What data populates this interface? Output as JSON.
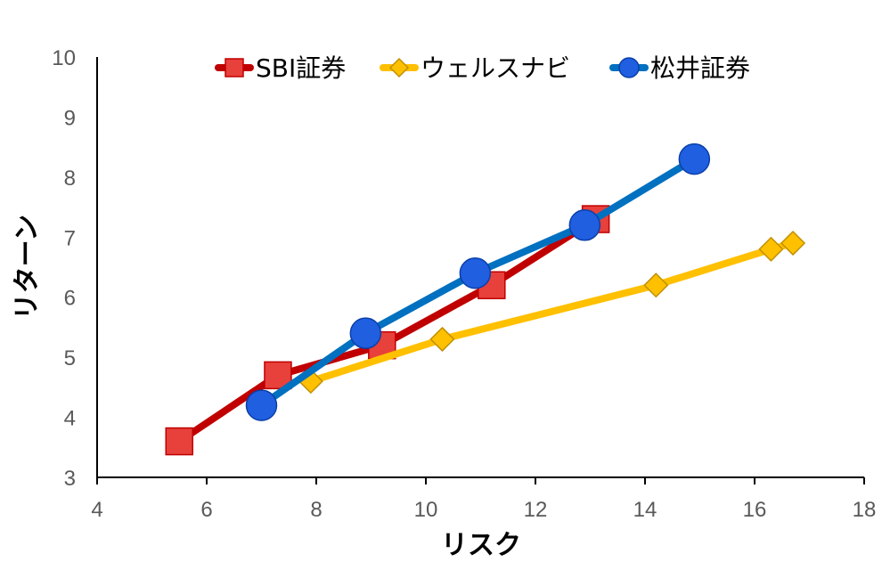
{
  "chart_data": {
    "type": "scatter",
    "title": "",
    "xlabel": "リスク",
    "ylabel": "リターン",
    "xlim": [
      4,
      18
    ],
    "ylim": [
      3,
      10
    ],
    "x_ticks": [
      "4",
      "6",
      "8",
      "10",
      "12",
      "14",
      "16",
      "18"
    ],
    "y_ticks": [
      "3",
      "4",
      "5",
      "6",
      "7",
      "8",
      "9",
      "10"
    ],
    "grid": false,
    "legend_position": "top",
    "series": [
      {
        "name": "SBI証券",
        "color": "#C00000",
        "marker_color": "#E8403A",
        "marker": "square",
        "points": [
          [
            5.5,
            3.6
          ],
          [
            7.3,
            4.7
          ],
          [
            9.2,
            5.2
          ],
          [
            11.2,
            6.2
          ],
          [
            13.1,
            7.3
          ]
        ]
      },
      {
        "name": "ウェルスナビ",
        "color": "#FFC000",
        "marker_color": "#FFC000",
        "marker": "diamond",
        "points": [
          [
            7.9,
            4.6
          ],
          [
            10.3,
            5.3
          ],
          [
            14.2,
            6.2
          ],
          [
            16.3,
            6.8
          ],
          [
            16.7,
            6.9
          ]
        ]
      },
      {
        "name": "松井証券",
        "color": "#0070C0",
        "marker_color": "#1F5FE0",
        "marker": "circle",
        "points": [
          [
            7.0,
            4.2
          ],
          [
            8.9,
            5.4
          ],
          [
            10.9,
            6.4
          ],
          [
            12.9,
            7.2
          ],
          [
            14.9,
            8.3
          ]
        ]
      }
    ]
  }
}
